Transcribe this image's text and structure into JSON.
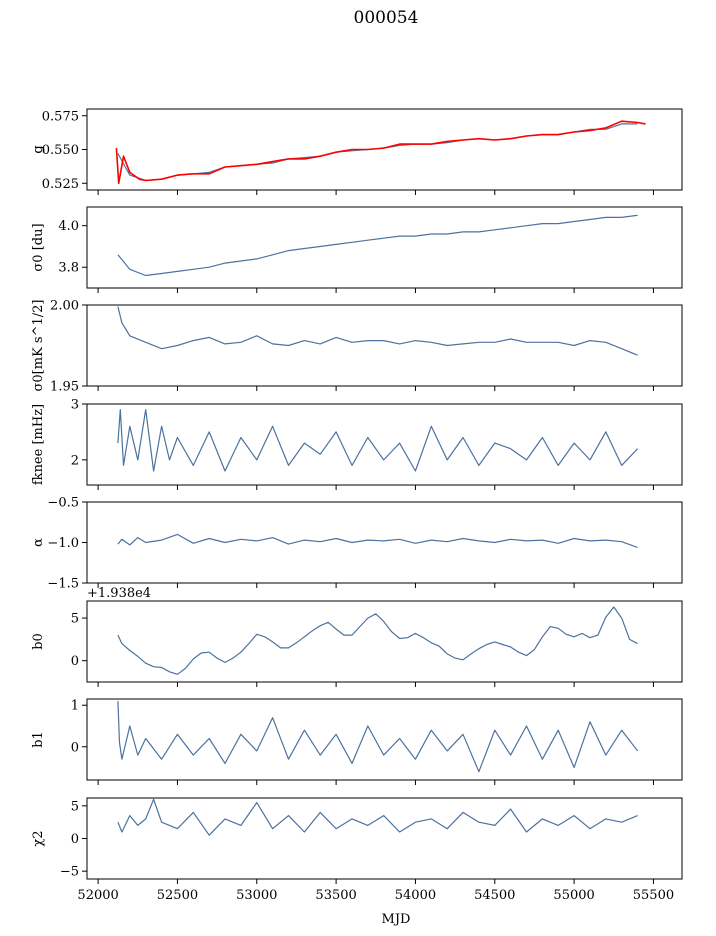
{
  "figure": {
    "title": "000054",
    "xlabel": "MJD"
  },
  "colors": {
    "line": "#4c72a0",
    "overlay": "#ff0000",
    "axes": "#000000"
  },
  "chart_data": [
    {
      "type": "line",
      "ylabel": "g",
      "xlim": [
        51930,
        55680
      ],
      "ylim": [
        0.52,
        0.58
      ],
      "yticks": [
        0.525,
        0.55,
        0.575
      ],
      "yticklabels": [
        "0.525",
        "0.550",
        "0.575"
      ],
      "series": [
        {
          "color": "#4c72a0",
          "x": [
            52125,
            52200,
            52300,
            52400,
            52500,
            52600,
            52700,
            52800,
            52900,
            53000,
            53100,
            53200,
            53300,
            53400,
            53500,
            53600,
            53700,
            53800,
            53900,
            54000,
            54100,
            54200,
            54300,
            54400,
            54500,
            54600,
            54700,
            54800,
            54900,
            55000,
            55100,
            55200,
            55300,
            55400
          ],
          "y": [
            0.547,
            0.531,
            0.527,
            0.528,
            0.531,
            0.532,
            0.533,
            0.537,
            0.538,
            0.539,
            0.54,
            0.543,
            0.544,
            0.545,
            0.548,
            0.549,
            0.55,
            0.551,
            0.553,
            0.554,
            0.554,
            0.555,
            0.557,
            0.558,
            0.557,
            0.558,
            0.56,
            0.561,
            0.561,
            0.563,
            0.565,
            0.565,
            0.569,
            0.569
          ]
        },
        {
          "color": "#ff0000",
          "x": [
            52115,
            52130,
            52160,
            52200,
            52260,
            52300,
            52400,
            52500,
            52600,
            52700,
            52800,
            52900,
            53000,
            53100,
            53200,
            53300,
            53400,
            53500,
            53600,
            53700,
            53800,
            53900,
            54000,
            54100,
            54200,
            54300,
            54400,
            54500,
            54600,
            54700,
            54800,
            54900,
            55000,
            55100,
            55200,
            55300,
            55400,
            55450
          ],
          "y": [
            0.551,
            0.525,
            0.545,
            0.533,
            0.528,
            0.527,
            0.528,
            0.531,
            0.532,
            0.532,
            0.537,
            0.538,
            0.539,
            0.541,
            0.543,
            0.543,
            0.545,
            0.548,
            0.55,
            0.55,
            0.551,
            0.554,
            0.554,
            0.554,
            0.556,
            0.557,
            0.558,
            0.557,
            0.558,
            0.56,
            0.561,
            0.561,
            0.563,
            0.564,
            0.566,
            0.571,
            0.57,
            0.569
          ]
        }
      ]
    },
    {
      "type": "line",
      "ylabel": "σ0 [du]",
      "xlim": [
        51930,
        55680
      ],
      "ylim": [
        3.7,
        4.09
      ],
      "yticks": [
        3.8,
        4.0
      ],
      "yticklabels": [
        "3.8",
        "4.0"
      ],
      "series": [
        {
          "color": "#4c72a0",
          "x": [
            52125,
            52200,
            52300,
            52400,
            52500,
            52600,
            52700,
            52800,
            52900,
            53000,
            53100,
            53200,
            53300,
            53400,
            53500,
            53600,
            53700,
            53800,
            53900,
            54000,
            54100,
            54200,
            54300,
            54400,
            54500,
            54600,
            54700,
            54800,
            54900,
            55000,
            55100,
            55200,
            55300,
            55400
          ],
          "y": [
            3.86,
            3.79,
            3.76,
            3.77,
            3.78,
            3.79,
            3.8,
            3.82,
            3.83,
            3.84,
            3.86,
            3.88,
            3.89,
            3.9,
            3.91,
            3.92,
            3.93,
            3.94,
            3.95,
            3.95,
            3.96,
            3.96,
            3.97,
            3.97,
            3.98,
            3.99,
            4.0,
            4.01,
            4.01,
            4.02,
            4.03,
            4.04,
            4.04,
            4.05
          ]
        }
      ]
    },
    {
      "type": "line",
      "ylabel": "σ0[mK s^1/2]",
      "xlim": [
        51930,
        55680
      ],
      "ylim": [
        1.95,
        2.0
      ],
      "yticks": [
        1.95,
        2.0
      ],
      "yticklabels": [
        "1.95",
        "2.00"
      ],
      "series": [
        {
          "color": "#4c72a0",
          "x": [
            52125,
            52150,
            52200,
            52300,
            52400,
            52500,
            52600,
            52700,
            52800,
            52900,
            53000,
            53100,
            53200,
            53300,
            53400,
            53500,
            53600,
            53700,
            53800,
            53900,
            54000,
            54100,
            54200,
            54300,
            54400,
            54500,
            54600,
            54700,
            54800,
            54900,
            55000,
            55100,
            55200,
            55300,
            55400
          ],
          "y": [
            1.999,
            1.989,
            1.981,
            1.977,
            1.973,
            1.975,
            1.978,
            1.98,
            1.976,
            1.977,
            1.981,
            1.976,
            1.975,
            1.978,
            1.976,
            1.98,
            1.977,
            1.978,
            1.978,
            1.976,
            1.978,
            1.977,
            1.975,
            1.976,
            1.977,
            1.977,
            1.979,
            1.977,
            1.977,
            1.977,
            1.975,
            1.978,
            1.977,
            1.973,
            1.969
          ]
        }
      ]
    },
    {
      "type": "line",
      "ylabel": "fknee [mHz]",
      "xlim": [
        51930,
        55680
      ],
      "ylim": [
        1.55,
        3.0
      ],
      "yticks": [
        2,
        3
      ],
      "yticklabels": [
        "2",
        "3"
      ],
      "series": [
        {
          "color": "#4c72a0",
          "x": [
            52125,
            52140,
            52160,
            52200,
            52250,
            52300,
            52350,
            52400,
            52450,
            52500,
            52600,
            52700,
            52800,
            52900,
            53000,
            53100,
            53200,
            53300,
            53400,
            53500,
            53600,
            53700,
            53800,
            53900,
            54000,
            54100,
            54200,
            54300,
            54400,
            54500,
            54600,
            54700,
            54800,
            54900,
            55000,
            55100,
            55200,
            55300,
            55400
          ],
          "y": [
            2.3,
            2.9,
            1.9,
            2.6,
            2.0,
            2.9,
            1.8,
            2.6,
            2.0,
            2.4,
            1.9,
            2.5,
            1.8,
            2.4,
            2.0,
            2.6,
            1.9,
            2.3,
            2.1,
            2.5,
            1.9,
            2.4,
            2.0,
            2.3,
            1.8,
            2.6,
            2.0,
            2.4,
            1.9,
            2.3,
            2.2,
            2.0,
            2.4,
            1.9,
            2.3,
            2.0,
            2.5,
            1.9,
            2.2
          ]
        }
      ]
    },
    {
      "type": "line",
      "ylabel": "α",
      "xlim": [
        51930,
        55680
      ],
      "ylim": [
        -1.5,
        -0.5
      ],
      "yticks": [
        -1.5,
        -1.0,
        -0.5
      ],
      "yticklabels": [
        "−1.5",
        "−1.0",
        "−0.5"
      ],
      "series": [
        {
          "color": "#4c72a0",
          "x": [
            52125,
            52150,
            52200,
            52250,
            52300,
            52400,
            52500,
            52600,
            52700,
            52800,
            52900,
            53000,
            53100,
            53200,
            53300,
            53400,
            53500,
            53600,
            53700,
            53800,
            53900,
            54000,
            54100,
            54200,
            54300,
            54400,
            54500,
            54600,
            54700,
            54800,
            54900,
            55000,
            55100,
            55200,
            55300,
            55400
          ],
          "y": [
            -1.02,
            -0.96,
            -1.03,
            -0.94,
            -1.0,
            -0.97,
            -0.9,
            -1.01,
            -0.95,
            -1.0,
            -0.96,
            -0.98,
            -0.94,
            -1.02,
            -0.97,
            -0.99,
            -0.95,
            -1.0,
            -0.97,
            -0.98,
            -0.96,
            -1.01,
            -0.97,
            -0.99,
            -0.95,
            -0.98,
            -1.0,
            -0.96,
            -0.98,
            -0.97,
            -1.01,
            -0.95,
            -0.98,
            -0.97,
            -0.99,
            -1.06
          ]
        }
      ]
    },
    {
      "type": "line",
      "ylabel": "b0",
      "offset_label": "+1.938e4",
      "xlim": [
        51930,
        55680
      ],
      "ylim": [
        -2.5,
        7.0
      ],
      "yticks": [
        0,
        5
      ],
      "yticklabels": [
        "0",
        "5"
      ],
      "series": [
        {
          "color": "#4c72a0",
          "x": [
            52125,
            52150,
            52200,
            52250,
            52300,
            52350,
            52400,
            52450,
            52500,
            52550,
            52600,
            52650,
            52700,
            52750,
            52800,
            52850,
            52900,
            52950,
            53000,
            53050,
            53100,
            53150,
            53200,
            53250,
            53300,
            53350,
            53400,
            53450,
            53500,
            53550,
            53600,
            53650,
            53700,
            53750,
            53800,
            53850,
            53900,
            53950,
            54000,
            54050,
            54100,
            54150,
            54200,
            54250,
            54300,
            54350,
            54400,
            54450,
            54500,
            54550,
            54600,
            54650,
            54700,
            54750,
            54800,
            54850,
            54900,
            54950,
            55000,
            55050,
            55100,
            55150,
            55200,
            55250,
            55300,
            55350,
            55400
          ],
          "y": [
            3.0,
            2.0,
            1.2,
            0.5,
            -0.3,
            -0.7,
            -0.8,
            -1.3,
            -1.6,
            -0.9,
            0.2,
            0.9,
            1.0,
            0.3,
            -0.2,
            0.3,
            1.0,
            2.0,
            3.1,
            2.8,
            2.2,
            1.5,
            1.5,
            2.1,
            2.8,
            3.5,
            4.1,
            4.5,
            3.7,
            3.0,
            3.0,
            4.0,
            5.0,
            5.5,
            4.6,
            3.4,
            2.6,
            2.7,
            3.2,
            2.7,
            2.1,
            1.7,
            0.8,
            0.3,
            0.1,
            0.8,
            1.4,
            1.9,
            2.2,
            1.9,
            1.6,
            1.0,
            0.6,
            1.3,
            2.8,
            4.0,
            3.8,
            3.1,
            2.8,
            3.2,
            2.7,
            3.0,
            5.1,
            6.3,
            5.0,
            2.5,
            2.0
          ]
        }
      ]
    },
    {
      "type": "line",
      "ylabel": "b1",
      "xlim": [
        51930,
        55680
      ],
      "ylim": [
        -0.8,
        1.15
      ],
      "yticks": [
        0,
        1
      ],
      "yticklabels": [
        "0",
        "1"
      ],
      "series": [
        {
          "color": "#4c72a0",
          "x": [
            52125,
            52135,
            52150,
            52200,
            52250,
            52300,
            52400,
            52500,
            52600,
            52700,
            52800,
            52900,
            53000,
            53100,
            53200,
            53300,
            53400,
            53500,
            53600,
            53700,
            53800,
            53900,
            54000,
            54100,
            54200,
            54300,
            54400,
            54500,
            54600,
            54700,
            54800,
            54900,
            55000,
            55100,
            55200,
            55300,
            55400
          ],
          "y": [
            1.1,
            0.1,
            -0.3,
            0.5,
            -0.2,
            0.2,
            -0.3,
            0.3,
            -0.2,
            0.2,
            -0.4,
            0.3,
            -0.1,
            0.7,
            -0.3,
            0.4,
            -0.2,
            0.3,
            -0.4,
            0.5,
            -0.2,
            0.2,
            -0.3,
            0.4,
            -0.1,
            0.3,
            -0.6,
            0.4,
            -0.2,
            0.5,
            -0.3,
            0.4,
            -0.5,
            0.6,
            -0.2,
            0.4,
            -0.1
          ]
        }
      ]
    },
    {
      "type": "line",
      "ylabel": "χ2",
      "xlim": [
        51930,
        55680
      ],
      "ylim": [
        -6.2,
        6.2
      ],
      "yticks": [
        -5,
        0,
        5
      ],
      "yticklabels": [
        "−5",
        "0",
        "5"
      ],
      "xticks": [
        52000,
        52500,
        53000,
        53500,
        54000,
        54500,
        55000,
        55500
      ],
      "xticklabels": [
        "52000",
        "52500",
        "53000",
        "53500",
        "54000",
        "54500",
        "55000",
        "55500"
      ],
      "series": [
        {
          "color": "#4c72a0",
          "x": [
            52125,
            52150,
            52200,
            52250,
            52300,
            52350,
            52400,
            52500,
            52600,
            52700,
            52800,
            52900,
            53000,
            53100,
            53200,
            53300,
            53400,
            53500,
            53600,
            53700,
            53800,
            53900,
            54000,
            54100,
            54200,
            54300,
            54400,
            54500,
            54600,
            54700,
            54800,
            54900,
            55000,
            55100,
            55200,
            55300,
            55400
          ],
          "y": [
            2.5,
            1.0,
            3.5,
            2.0,
            3.0,
            6.0,
            2.5,
            1.5,
            4.0,
            0.5,
            3.0,
            2.0,
            5.5,
            1.5,
            3.5,
            1.0,
            4.0,
            1.5,
            3.0,
            2.0,
            3.5,
            1.0,
            2.5,
            3.0,
            1.5,
            4.0,
            2.5,
            2.0,
            4.5,
            1.0,
            3.0,
            2.0,
            3.5,
            1.5,
            3.0,
            2.5,
            3.5
          ]
        }
      ]
    }
  ]
}
